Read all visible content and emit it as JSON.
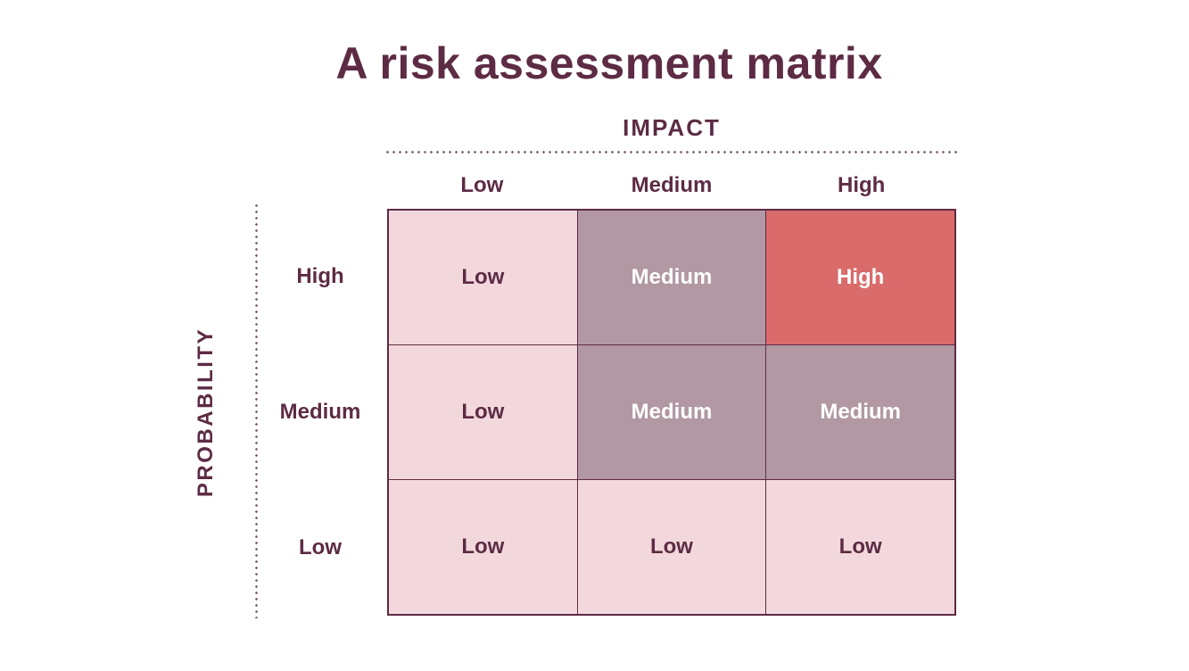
{
  "title": "A risk assessment matrix",
  "colors": {
    "text_plum": "#5d2b44",
    "cell_low": "#f2d8dc",
    "cell_medium": "#b198a3",
    "cell_high": "#d96b6b",
    "cell_text_light": "#ffffff",
    "grid_border": "#5d2b44",
    "dotted_line": "#7d5b6c",
    "background": "#ffffff"
  },
  "chart_data": {
    "type": "heatmap",
    "title": "A risk assessment matrix",
    "xlabel": "IMPACT",
    "ylabel": "PROBABILITY",
    "x_categories": [
      "Low",
      "Medium",
      "High"
    ],
    "y_categories": [
      "High",
      "Medium",
      "Low"
    ],
    "cells": [
      [
        {
          "label": "Low",
          "level": "low"
        },
        {
          "label": "Medium",
          "level": "medium"
        },
        {
          "label": "High",
          "level": "high"
        }
      ],
      [
        {
          "label": "Low",
          "level": "low"
        },
        {
          "label": "Medium",
          "level": "medium"
        },
        {
          "label": "Medium",
          "level": "medium"
        }
      ],
      [
        {
          "label": "Low",
          "level": "low"
        },
        {
          "label": "Low",
          "level": "low"
        },
        {
          "label": "Low",
          "level": "low"
        }
      ]
    ],
    "layout": {
      "grid": "3x3",
      "x_axis_position": "top",
      "y_axis_position": "left",
      "axis_divider_style": "dotted"
    }
  }
}
